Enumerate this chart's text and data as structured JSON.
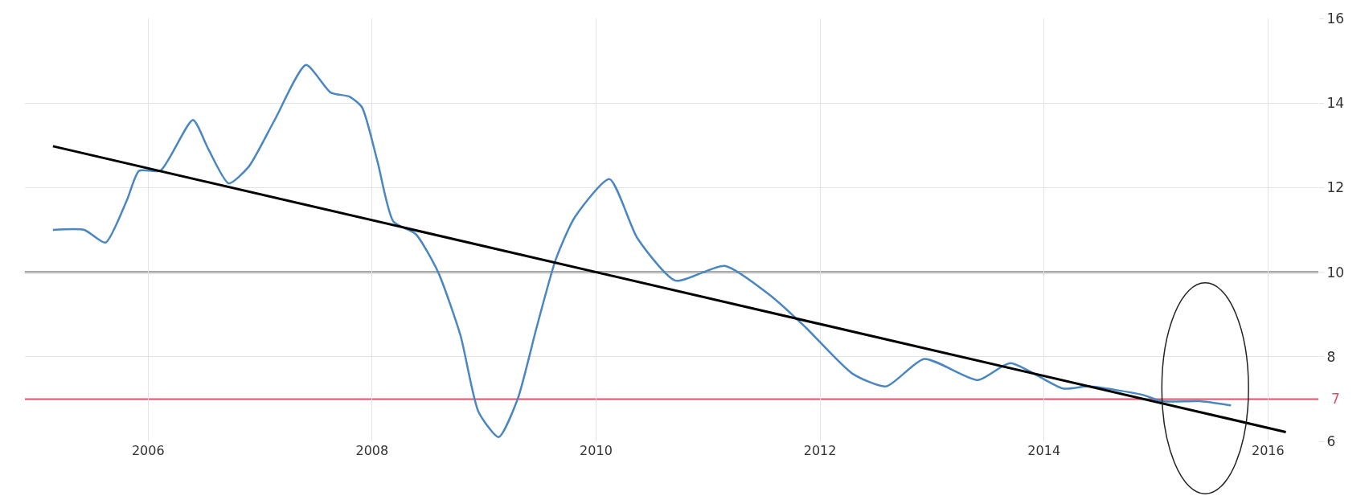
{
  "chart_data": {
    "type": "line",
    "marker": "none",
    "grid": true,
    "xlim": [
      2004.9,
      2016.45
    ],
    "xticks": [
      2006,
      2008,
      2010,
      2012,
      2014,
      2016
    ],
    "ylim": [
      6,
      16
    ],
    "yticks": [
      6,
      8,
      10,
      12,
      14,
      16
    ],
    "series": [
      {
        "color": "#4a86c0",
        "x": [
          2005.15,
          2005.43,
          2005.62,
          2005.81,
          2005.92,
          2006.11,
          2006.4,
          2006.54,
          2006.72,
          2006.9,
          2007.13,
          2007.41,
          2007.63,
          2007.8,
          2007.91,
          2008.05,
          2008.19,
          2008.39,
          2008.59,
          2008.79,
          2008.95,
          2009.13,
          2009.3,
          2009.47,
          2009.64,
          2009.81,
          2010.12,
          2010.37,
          2010.71,
          2011.15,
          2011.58,
          2011.87,
          2012.29,
          2012.59,
          2012.93,
          2013.41,
          2013.7,
          2014.17,
          2014.4,
          2014.88,
          2015.05,
          2015.39,
          2015.67
        ],
        "values": [
          11.0,
          11.0,
          10.7,
          11.7,
          12.4,
          12.4,
          13.6,
          12.9,
          12.1,
          12.5,
          13.6,
          14.9,
          14.25,
          14.15,
          13.9,
          12.6,
          11.2,
          10.9,
          10.0,
          8.5,
          6.7,
          6.1,
          7.0,
          8.7,
          10.3,
          11.3,
          12.2,
          10.8,
          9.8,
          10.15,
          9.4,
          8.7,
          7.6,
          7.3,
          7.95,
          7.45,
          7.85,
          7.25,
          7.3,
          7.1,
          6.95,
          6.95,
          6.85
        ]
      },
      {
        "type": "line",
        "color": "#000000",
        "x": [
          2005.15,
          2016.16
        ],
        "values": [
          12.98,
          6.22
        ]
      }
    ],
    "ref_lines": [
      {
        "axis": "y",
        "value": 10,
        "label": null,
        "color": "#333333"
      },
      {
        "axis": "y",
        "value": 7,
        "label": "7",
        "color": "#d9536a"
      }
    ]
  }
}
